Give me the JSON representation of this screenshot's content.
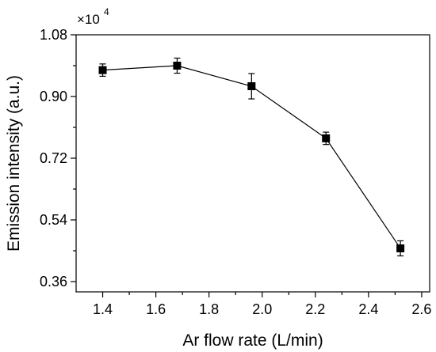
{
  "chart_data": {
    "type": "line",
    "xlabel": "Ar flow rate (L/min)",
    "ylabel": "Emission intensity (a.u.)",
    "y_multiplier_label": "×10",
    "y_multiplier_exponent": "4",
    "xlim": [
      1.3,
      2.63
    ],
    "ylim": [
      0.33,
      1.08
    ],
    "x_ticks": [
      1.4,
      1.6,
      1.8,
      2.0,
      2.2,
      2.4,
      2.6
    ],
    "x_tick_labels": [
      "1.4",
      "1.6",
      "1.8",
      "2.0",
      "2.2",
      "2.4",
      "2.6"
    ],
    "y_ticks": [
      0.36,
      0.54,
      0.72,
      0.9,
      1.08
    ],
    "y_tick_labels": [
      "0.36",
      "0.54",
      "0.72",
      "0.90",
      "1.08"
    ],
    "marker": "square",
    "series": [
      {
        "x": [
          1.4,
          1.68,
          1.96,
          2.24,
          2.52
        ],
        "y": [
          0.977,
          0.99,
          0.93,
          0.778,
          0.457
        ],
        "error": [
          0.018,
          0.022,
          0.037,
          0.018,
          0.022
        ]
      }
    ]
  }
}
